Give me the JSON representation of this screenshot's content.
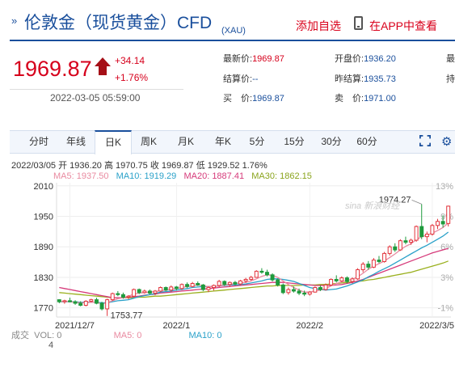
{
  "header": {
    "marker": "»",
    "title": "伦敦金（现货黄金）CFD",
    "subtitle": "(XAU)",
    "add_favorite": "添加自选",
    "app_link": "在APP中查看"
  },
  "quote": {
    "price": "1969.87",
    "change": "+34.14",
    "change_pct": "+1.76%",
    "time": "2022-03-05 05:59:00",
    "fields": [
      {
        "label": "最新价:",
        "value": "1969.87"
      },
      {
        "label": "开盘价:",
        "value": "1936.20"
      },
      {
        "label": "最",
        "value": ""
      },
      {
        "label": "结算价:",
        "value": "--"
      },
      {
        "label": "昨结算:",
        "value": "1935.73"
      },
      {
        "label": "持",
        "value": ""
      },
      {
        "label": "买　价:",
        "value": "1969.87"
      },
      {
        "label": "卖　价:",
        "value": "1971.00"
      }
    ]
  },
  "tabs": [
    "分时",
    "年线",
    "日K",
    "周K",
    "月K",
    "年K",
    "5分",
    "15分",
    "30分",
    "60分"
  ],
  "active_tab": "日K",
  "icons": {
    "expand": "expand-icon",
    "settings": "gear-icon"
  },
  "info_line": "2022/03/05 开 1936.20 高 1970.75 收 1969.87 低 1929.52 1.76%",
  "ma_legend": {
    "ma5": "MA5: 1937.50",
    "ma10": "MA10: 1919.29",
    "ma20": "MA20: 1887.41",
    "ma30": "MA30: 1862.15"
  },
  "watermark": "sina 新浪财经",
  "volume": {
    "label": "成交",
    "vol": "VOL: 0",
    "ma5": "MA5: 0",
    "ma10": "MA10: 0",
    "axis_value": "4"
  },
  "chart_data": {
    "type": "candlestick",
    "y_ticks": [
      "2010",
      "1950",
      "1890",
      "1830",
      "1770"
    ],
    "y_tick_values": [
      2010,
      1950,
      1890,
      1830,
      1770
    ],
    "pct_ticks": [
      "13%",
      "9%",
      "6%",
      "3%",
      "-1%"
    ],
    "x_ticks": [
      "2021/12/7",
      "2022/1",
      "2022/2",
      "2022/3/5"
    ],
    "ylim": [
      1752,
      2016
    ],
    "annotations": [
      {
        "label": "1974.27",
        "value": 1974.27
      },
      {
        "label": "1753.77",
        "value": 1753.77
      }
    ],
    "candles": [
      [
        1786,
        1787,
        1779,
        1782
      ],
      [
        1782,
        1786,
        1778,
        1784
      ],
      [
        1784,
        1790,
        1781,
        1782
      ],
      [
        1782,
        1785,
        1776,
        1779
      ],
      [
        1779,
        1783,
        1773,
        1775
      ],
      [
        1775,
        1785,
        1773,
        1783
      ],
      [
        1783,
        1788,
        1781,
        1786
      ],
      [
        1786,
        1790,
        1777,
        1779
      ],
      [
        1779,
        1782,
        1765,
        1768
      ],
      [
        1768,
        1788,
        1754,
        1786
      ],
      [
        1786,
        1800,
        1784,
        1798
      ],
      [
        1798,
        1803,
        1793,
        1796
      ],
      [
        1796,
        1800,
        1788,
        1791
      ],
      [
        1791,
        1795,
        1787,
        1793
      ],
      [
        1793,
        1808,
        1792,
        1806
      ],
      [
        1806,
        1808,
        1797,
        1800
      ],
      [
        1800,
        1806,
        1798,
        1803
      ],
      [
        1803,
        1806,
        1796,
        1799
      ],
      [
        1799,
        1805,
        1795,
        1803
      ],
      [
        1803,
        1812,
        1801,
        1810
      ],
      [
        1810,
        1812,
        1803,
        1805
      ],
      [
        1805,
        1814,
        1802,
        1811
      ],
      [
        1811,
        1813,
        1804,
        1808
      ],
      [
        1808,
        1818,
        1805,
        1816
      ],
      [
        1816,
        1820,
        1809,
        1812
      ],
      [
        1812,
        1821,
        1810,
        1818
      ],
      [
        1818,
        1822,
        1813,
        1815
      ],
      [
        1815,
        1817,
        1803,
        1806
      ],
      [
        1806,
        1812,
        1801,
        1810
      ],
      [
        1810,
        1816,
        1804,
        1814
      ],
      [
        1814,
        1825,
        1811,
        1822
      ],
      [
        1822,
        1824,
        1813,
        1816
      ],
      [
        1816,
        1822,
        1812,
        1820
      ],
      [
        1820,
        1823,
        1814,
        1817
      ],
      [
        1817,
        1825,
        1815,
        1823
      ],
      [
        1823,
        1829,
        1819,
        1826
      ],
      [
        1826,
        1833,
        1823,
        1830
      ],
      [
        1830,
        1844,
        1829,
        1842
      ],
      [
        1842,
        1848,
        1837,
        1840
      ],
      [
        1840,
        1845,
        1832,
        1835
      ],
      [
        1835,
        1838,
        1822,
        1825
      ],
      [
        1825,
        1828,
        1812,
        1815
      ],
      [
        1815,
        1818,
        1797,
        1800
      ],
      [
        1800,
        1810,
        1796,
        1806
      ],
      [
        1806,
        1812,
        1800,
        1803
      ],
      [
        1803,
        1808,
        1795,
        1799
      ],
      [
        1799,
        1804,
        1793,
        1797
      ],
      [
        1797,
        1803,
        1794,
        1801
      ],
      [
        1801,
        1812,
        1800,
        1810
      ],
      [
        1810,
        1814,
        1803,
        1806
      ],
      [
        1806,
        1818,
        1804,
        1815
      ],
      [
        1815,
        1828,
        1813,
        1826
      ],
      [
        1826,
        1834,
        1820,
        1823
      ],
      [
        1823,
        1832,
        1821,
        1829
      ],
      [
        1829,
        1832,
        1818,
        1822
      ],
      [
        1822,
        1830,
        1818,
        1827
      ],
      [
        1827,
        1848,
        1825,
        1845
      ],
      [
        1845,
        1860,
        1840,
        1856
      ],
      [
        1856,
        1862,
        1845,
        1850
      ],
      [
        1850,
        1868,
        1848,
        1864
      ],
      [
        1864,
        1872,
        1858,
        1861
      ],
      [
        1861,
        1880,
        1859,
        1877
      ],
      [
        1877,
        1893,
        1873,
        1890
      ],
      [
        1890,
        1897,
        1880,
        1884
      ],
      [
        1884,
        1905,
        1882,
        1902
      ],
      [
        1902,
        1910,
        1895,
        1899
      ],
      [
        1899,
        1906,
        1894,
        1903
      ],
      [
        1903,
        1932,
        1900,
        1930
      ],
      [
        1930,
        1974,
        1905,
        1910
      ],
      [
        1910,
        1920,
        1899,
        1915
      ],
      [
        1915,
        1935,
        1912,
        1932
      ],
      [
        1932,
        1945,
        1925,
        1940
      ],
      [
        1940,
        1952,
        1928,
        1935
      ],
      [
        1936,
        1971,
        1930,
        1970
      ]
    ],
    "ma5": [
      1782,
      1783,
      1782,
      1781,
      1780,
      1780,
      1781,
      1781,
      1778,
      1780,
      1784,
      1788,
      1790,
      1793,
      1797,
      1799,
      1800,
      1801,
      1802,
      1804,
      1805,
      1807,
      1808,
      1810,
      1812,
      1813,
      1815,
      1813,
      1812,
      1812,
      1813,
      1815,
      1816,
      1818,
      1819,
      1820,
      1823,
      1827,
      1832,
      1835,
      1834,
      1830,
      1823,
      1816,
      1810,
      1805,
      1801,
      1801,
      1803,
      1805,
      1808,
      1813,
      1818,
      1821,
      1824,
      1826,
      1831,
      1838,
      1846,
      1852,
      1857,
      1862,
      1869,
      1876,
      1884,
      1891,
      1896,
      1904,
      1910,
      1913,
      1917,
      1922,
      1928,
      1937
    ],
    "ma10": [
      1782,
      1782,
      1782,
      1782,
      1781,
      1781,
      1781,
      1781,
      1780,
      1780,
      1782,
      1784,
      1785,
      1786,
      1789,
      1792,
      1794,
      1796,
      1798,
      1801,
      1802,
      1803,
      1805,
      1806,
      1808,
      1810,
      1811,
      1812,
      1812,
      1812,
      1813,
      1814,
      1815,
      1815,
      1816,
      1817,
      1819,
      1821,
      1823,
      1826,
      1827,
      1827,
      1826,
      1824,
      1822,
      1818,
      1814,
      1810,
      1808,
      1806,
      1805,
      1806,
      1807,
      1810,
      1813,
      1817,
      1821,
      1825,
      1831,
      1836,
      1842,
      1847,
      1852,
      1858,
      1864,
      1870,
      1876,
      1882,
      1888,
      1893,
      1899,
      1905,
      1911,
      1919
    ],
    "ma20": [
      1810,
      1808,
      1806,
      1804,
      1802,
      1800,
      1798,
      1796,
      1794,
      1792,
      1790,
      1790,
      1790,
      1791,
      1792,
      1793,
      1795,
      1796,
      1797,
      1799,
      1800,
      1801,
      1802,
      1803,
      1804,
      1805,
      1806,
      1807,
      1808,
      1809,
      1810,
      1811,
      1812,
      1813,
      1814,
      1815,
      1816,
      1817,
      1818,
      1819,
      1820,
      1820,
      1820,
      1819,
      1818,
      1817,
      1816,
      1815,
      1814,
      1814,
      1814,
      1814,
      1815,
      1816,
      1818,
      1820,
      1823,
      1826,
      1830,
      1834,
      1838,
      1842,
      1846,
      1850,
      1854,
      1858,
      1862,
      1866,
      1870,
      1874,
      1878,
      1881,
      1884,
      1887
    ],
    "ma30": [
      1800,
      1799,
      1798,
      1797,
      1796,
      1795,
      1794,
      1793,
      1792,
      1791,
      1790,
      1790,
      1790,
      1790,
      1790,
      1791,
      1791,
      1792,
      1793,
      1793,
      1794,
      1795,
      1796,
      1797,
      1798,
      1799,
      1800,
      1801,
      1802,
      1803,
      1804,
      1805,
      1806,
      1807,
      1808,
      1809,
      1810,
      1811,
      1812,
      1813,
      1813,
      1814,
      1814,
      1814,
      1814,
      1814,
      1815,
      1815,
      1815,
      1816,
      1816,
      1817,
      1818,
      1819,
      1820,
      1821,
      1822,
      1823,
      1825,
      1826,
      1828,
      1830,
      1832,
      1834,
      1836,
      1838,
      1840,
      1843,
      1846,
      1849,
      1852,
      1855,
      1858,
      1862
    ]
  }
}
